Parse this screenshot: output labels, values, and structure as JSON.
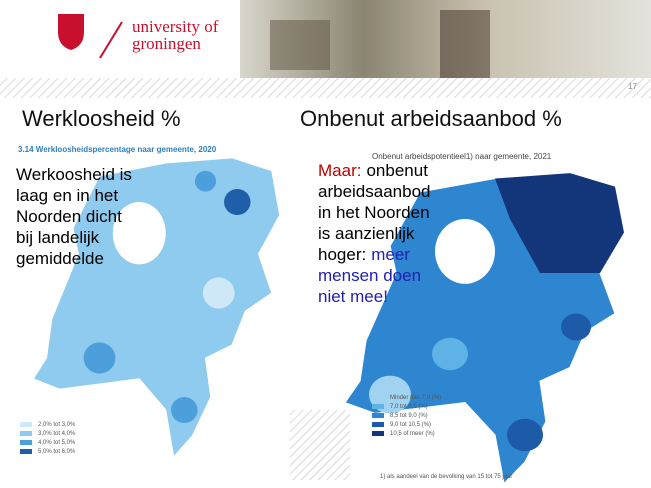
{
  "header": {
    "logo_line1": "university of",
    "logo_line2": "groningen",
    "page_number": "17"
  },
  "left": {
    "heading": "Werkloosheid %",
    "map_title": "3.14  Werkloosheidspercentage naar gemeente, 2020",
    "text_lines": [
      "Werkoosheid is",
      "laag en in het",
      "Noorden dicht",
      "bij landelijk",
      "gemiddelde"
    ],
    "legend": [
      {
        "label": "2,0% tot 3,0%",
        "color": "#cfe8f8"
      },
      {
        "label": "3,0% tot 4,0%",
        "color": "#8fcbee"
      },
      {
        "label": "4,0% tot 5,0%",
        "color": "#4d9fdb"
      },
      {
        "label": "5,0% tot 6,0%",
        "color": "#1f5ea8"
      }
    ]
  },
  "right": {
    "heading": "Onbenut arbeidsaanbod %",
    "map_title": "Onbenut arbeidspotentieel1) naar gemeente, 2021",
    "text_lines": [
      [
        {
          "text": "Maar:",
          "color": "#c00000"
        },
        {
          "text": "onbenut",
          "color": "#000000"
        }
      ],
      [
        {
          "text": "arbeidsaanbod",
          "color": "#000000"
        }
      ],
      [
        {
          "text": "in het Noorden",
          "color": "#000000"
        }
      ],
      [
        {
          "text": "is aanzienlijk",
          "color": "#000000"
        }
      ],
      [
        {
          "text": "hoger:",
          "color": "#000000"
        },
        {
          "text": "meer",
          "color": "#1f1fb0"
        }
      ],
      [
        {
          "text": "mensen doen",
          "color": "#1f1fb0"
        }
      ],
      [
        {
          "text": "niet mee!",
          "color": "#1f1fb0"
        }
      ]
    ],
    "legend": [
      {
        "label": "Minder dan 7,0 (%)",
        "color": "#9fd3f0"
      },
      {
        "label": "7,0 tot 8,5 (%)",
        "color": "#5fb2e6"
      },
      {
        "label": "8,5 tot 9,0 (%)",
        "color": "#2e86d0"
      },
      {
        "label": "9,0 tot 10,5 (%)",
        "color": "#1d5aa8"
      },
      {
        "label": "10,5 of meer (%)",
        "color": "#13357a"
      }
    ],
    "footnote": "1) als aandeel van de bevolking van 15 tot 75 jaar"
  }
}
